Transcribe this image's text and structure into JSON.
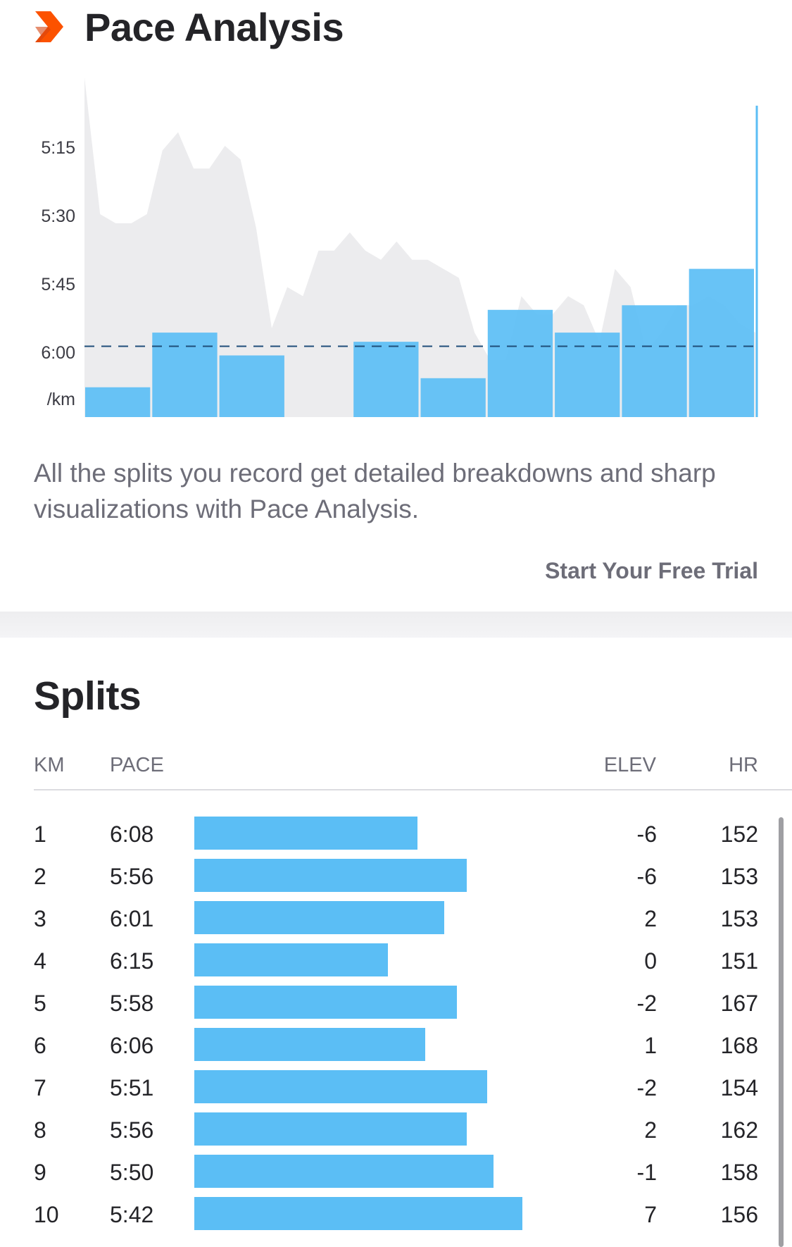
{
  "pace_analysis": {
    "title": "Pace Analysis",
    "description": "All the splits you record get detailed breakdowns and sharp visualizations with Pace Analysis.",
    "trial_label": "Start Your Free Trial"
  },
  "chart_data": {
    "type": "bar",
    "y_ticks": [
      "5:15",
      "5:30",
      "5:45",
      "6:00"
    ],
    "unit_label": "/km",
    "y_axis_inverted": true,
    "ylim_seconds": [
      305,
      385
    ],
    "categories": [
      "1",
      "2",
      "3",
      "4",
      "5",
      "6",
      "7",
      "8",
      "9",
      "10"
    ],
    "values_seconds": [
      368,
      356,
      361,
      375,
      358,
      366,
      351,
      356,
      350,
      342
    ],
    "average_seconds": 359,
    "grid": false,
    "line_series": {
      "type": "area",
      "values_seconds": [
        300,
        330,
        332,
        332,
        330,
        316,
        312,
        320,
        320,
        315,
        318,
        333,
        355,
        346,
        348,
        338,
        338,
        334,
        338,
        340,
        336,
        340,
        340,
        342,
        344,
        356,
        362,
        362,
        348,
        352,
        352,
        348,
        350,
        358,
        342,
        346,
        360,
        356,
        350,
        350,
        348,
        350,
        354,
        356
      ]
    }
  },
  "splits": {
    "title": "Splits",
    "headers": {
      "km": "KM",
      "pace": "PACE",
      "elev": "ELEV",
      "hr": "HR"
    },
    "rows": [
      {
        "km": "1",
        "pace": "6:08",
        "elev": "-6",
        "hr": "152",
        "bar_fraction": 0.348
      },
      {
        "km": "2",
        "pace": "5:56",
        "elev": "-6",
        "hr": "153",
        "bar_fraction": 0.425
      },
      {
        "km": "3",
        "pace": "6:01",
        "elev": "2",
        "hr": "153",
        "bar_fraction": 0.39
      },
      {
        "km": "4",
        "pace": "6:15",
        "elev": "0",
        "hr": "151",
        "bar_fraction": 0.302
      },
      {
        "km": "5",
        "pace": "5:58",
        "elev": "-2",
        "hr": "167",
        "bar_fraction": 0.41
      },
      {
        "km": "6",
        "pace": "6:06",
        "elev": "1",
        "hr": "168",
        "bar_fraction": 0.36
      },
      {
        "km": "7",
        "pace": "5:51",
        "elev": "-2",
        "hr": "154",
        "bar_fraction": 0.457
      },
      {
        "km": "8",
        "pace": "5:56",
        "elev": "2",
        "hr": "162",
        "bar_fraction": 0.425
      },
      {
        "km": "9",
        "pace": "5:50",
        "elev": "-1",
        "hr": "158",
        "bar_fraction": 0.467
      },
      {
        "km": "10",
        "pace": "5:42",
        "elev": "7",
        "hr": "156",
        "bar_fraction": 0.512
      }
    ]
  },
  "colors": {
    "accent_orange": "#fc5200",
    "bar_blue": "#5bbef5",
    "area_gray": "#ececee",
    "average_line": "#1f4e79",
    "text_dark": "#242428",
    "text_gray": "#6d6d78"
  }
}
